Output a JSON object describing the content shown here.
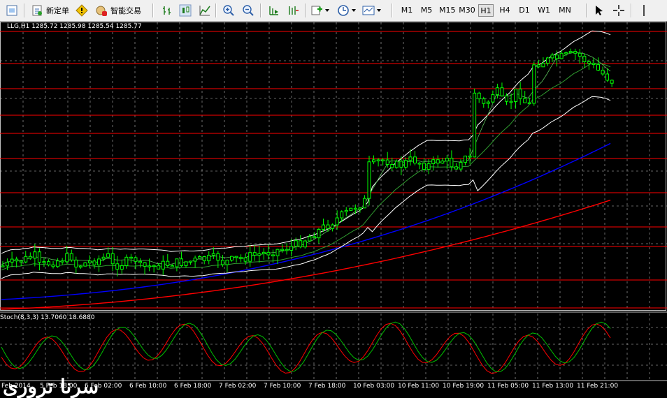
{
  "toolbar": {
    "new_order": "新定单",
    "auto_trading": "智能交易",
    "timeframes": [
      "M1",
      "M5",
      "M15",
      "M30",
      "H1",
      "H4",
      "D1",
      "W1",
      "MN"
    ],
    "active_timeframe": "H1"
  },
  "chart": {
    "info": "LLG,H1  1285.72 1285.98 1285.54 1285.77",
    "stoch_label": "Stoch(8,3,3) 13.7060 18.6880",
    "x_labels": [
      "Feb 2014",
      "5 Feb 18:00",
      "6 Feb 02:00",
      "6 Feb 10:00",
      "6 Feb 18:00",
      "7 Feb 02:00",
      "7 Feb 10:00",
      "7 Feb 18:00",
      "10 Feb 03:00",
      "10 Feb 11:00",
      "10 Feb 19:00",
      "11 Feb 05:00",
      "11 Feb 13:00",
      "11 Feb 21:00"
    ],
    "watermark": "سرنا تروری"
  },
  "colors": {
    "bull_candle": "#00ff00",
    "bear_candle": "#ffffff",
    "ma_slow": "#ff0000",
    "ma_mid": "#0000ff",
    "bands": "#ffffff",
    "stoch_main": "#00c000",
    "stoch_signal": "#ff0000",
    "level_lines": "#ff0000",
    "grid": "#c0c0c0"
  }
}
